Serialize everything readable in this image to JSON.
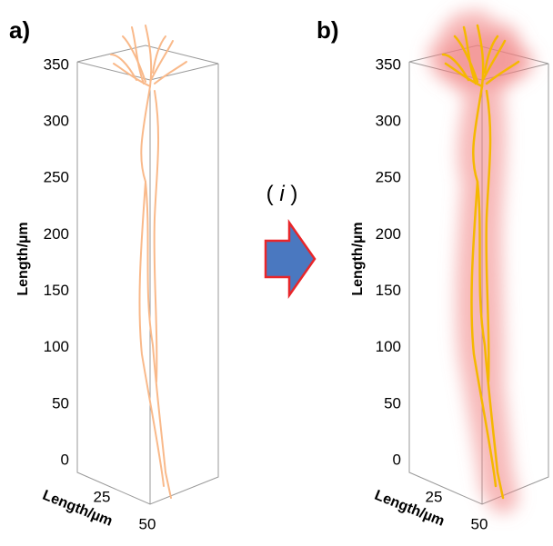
{
  "panels": [
    {
      "label": "a)",
      "y_axis": {
        "title": "Length/µm",
        "ticks": [
          0,
          50,
          100,
          150,
          200,
          250,
          300,
          350
        ]
      },
      "x_axis": {
        "title": "Length/µm",
        "ticks": [
          25,
          50
        ]
      }
    },
    {
      "label": "b)",
      "y_axis": {
        "title": "Length/µm",
        "ticks": [
          0,
          50,
          100,
          150,
          200,
          250,
          300,
          350
        ]
      },
      "x_axis": {
        "title": "Length/µm",
        "ticks": [
          25,
          50
        ]
      }
    }
  ],
  "arrow_label": {
    "open": "(",
    "symbol": "i",
    "close": ")"
  }
}
